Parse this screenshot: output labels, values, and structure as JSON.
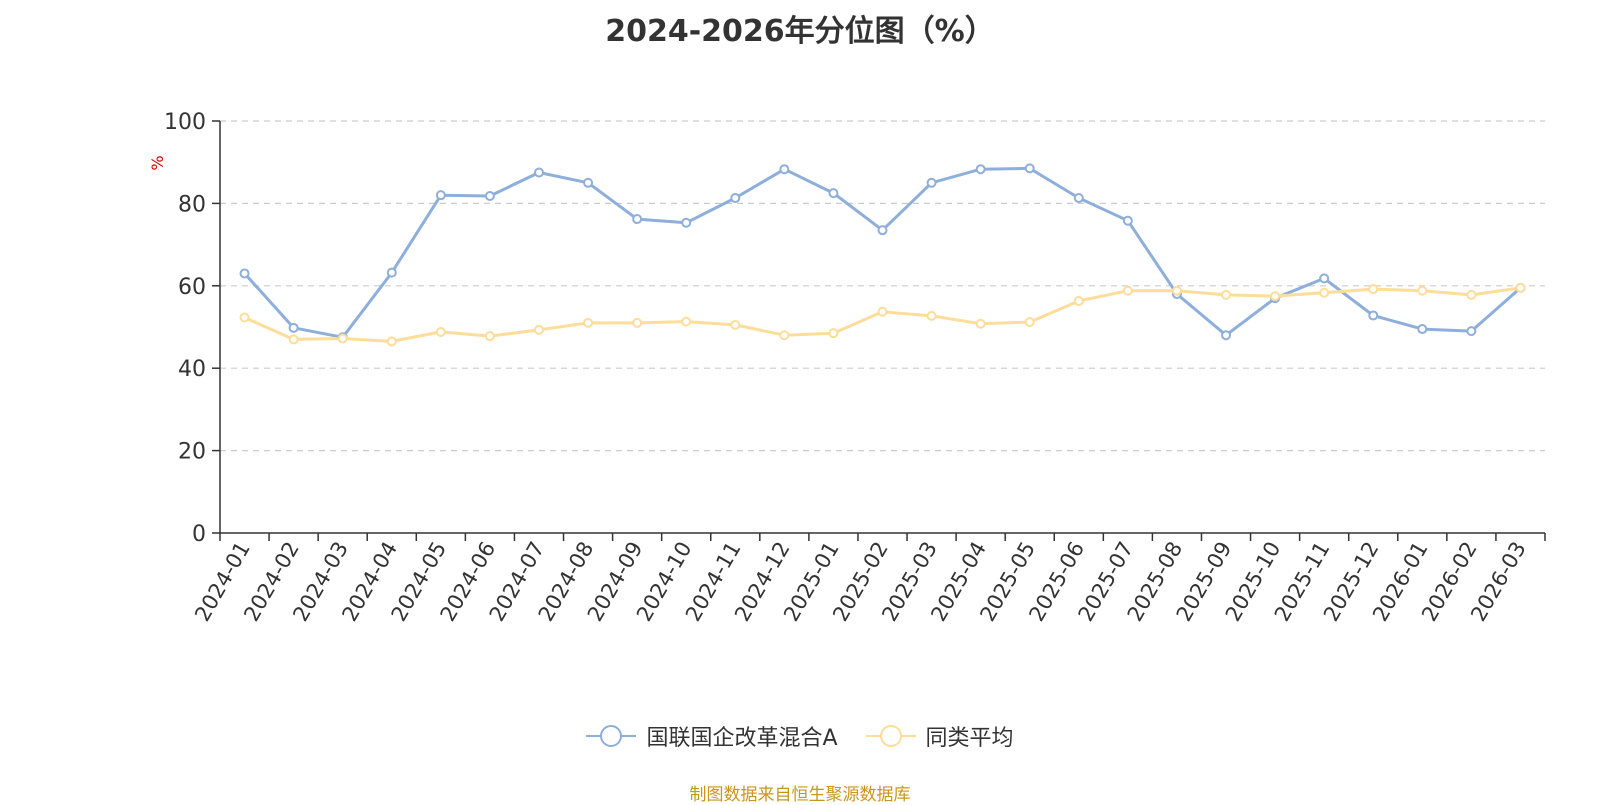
{
  "title": "2024-2026年分位图（%）",
  "source_text": "制图数据来自恒生聚源数据库",
  "colors": {
    "series_a": "#8eaedb",
    "series_b": "#fddd99",
    "grid": "#cccccc",
    "axis": "#333333",
    "unit": "#e00000",
    "source": "#c9961a"
  },
  "chart_data": {
    "type": "line",
    "ylabel": "%",
    "ylim": [
      0,
      100
    ],
    "yticks": [
      0,
      20,
      40,
      60,
      80,
      100
    ],
    "grid": true,
    "legend_position": "bottom-center",
    "categories": [
      "2024-01",
      "2024-02",
      "2024-03",
      "2024-04",
      "2024-05",
      "2024-06",
      "2024-07",
      "2024-08",
      "2024-09",
      "2024-10",
      "2024-11",
      "2024-12",
      "2025-01",
      "2025-02",
      "2025-03",
      "2025-04",
      "2025-05",
      "2025-06",
      "2025-07",
      "2025-08",
      "2025-09",
      "2025-10",
      "2025-11",
      "2025-12",
      "2026-01",
      "2026-02",
      "2026-03"
    ],
    "series": [
      {
        "name": "国联国企改革混合A",
        "values": [
          63.0,
          49.8,
          47.5,
          63.2,
          82.0,
          81.8,
          87.5,
          85.0,
          76.2,
          75.3,
          81.3,
          88.3,
          82.5,
          73.5,
          85.0,
          88.3,
          88.5,
          81.3,
          75.8,
          58.0,
          48.0,
          57.0,
          61.8,
          52.8,
          49.5,
          49.0,
          59.5
        ]
      },
      {
        "name": "同类平均",
        "values": [
          52.3,
          47.0,
          47.2,
          46.5,
          48.8,
          47.8,
          49.3,
          51.0,
          51.0,
          51.3,
          50.5,
          48.0,
          48.5,
          53.7,
          52.7,
          50.8,
          51.2,
          56.3,
          58.8,
          58.8,
          57.8,
          57.5,
          58.3,
          59.2,
          58.8,
          57.8,
          59.5
        ]
      }
    ]
  }
}
